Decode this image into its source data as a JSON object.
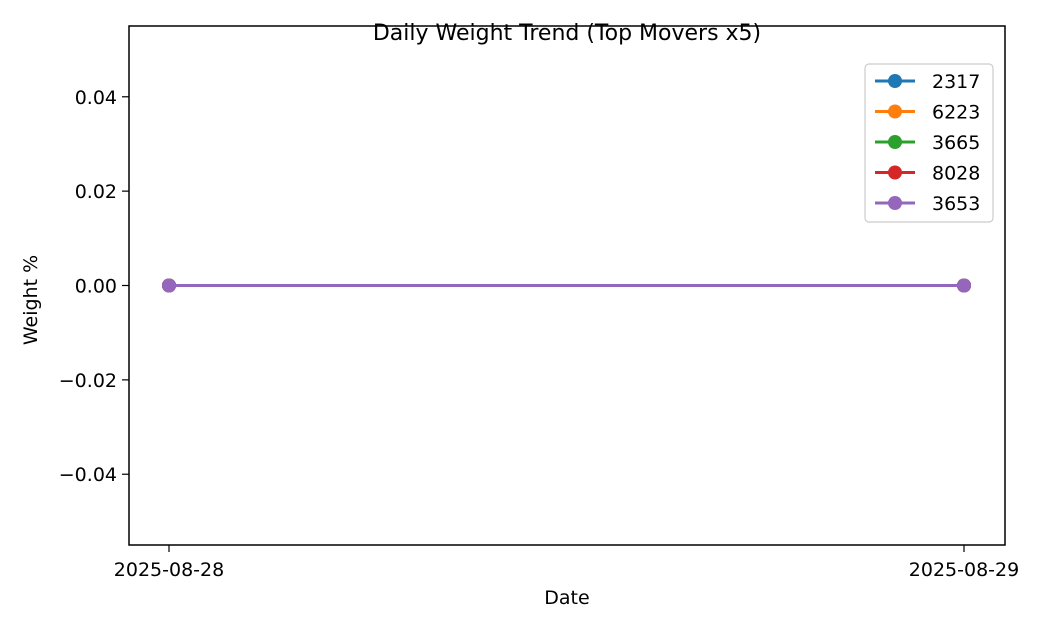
{
  "chart_data": {
    "type": "line",
    "title": "Daily Weight Trend (Top Movers x5)",
    "xlabel": "Date",
    "ylabel": "Weight %",
    "x": [
      "2025-08-28",
      "2025-08-29"
    ],
    "ylim": [
      -0.055,
      0.055
    ],
    "yticks": [
      0.04,
      0.02,
      0.0,
      -0.02,
      -0.04
    ],
    "ytick_labels": [
      "0.04",
      "0.02",
      "0.00",
      "−0.02",
      "−0.04"
    ],
    "grid": false,
    "legend_position": "top-right",
    "series": [
      {
        "name": "2317",
        "color": "#1f77b4",
        "values": [
          0.0,
          0.0
        ]
      },
      {
        "name": "6223",
        "color": "#ff7f0e",
        "values": [
          0.0,
          0.0
        ]
      },
      {
        "name": "3665",
        "color": "#2ca02c",
        "values": [
          0.0,
          0.0
        ]
      },
      {
        "name": "8028",
        "color": "#d62728",
        "values": [
          0.0,
          0.0
        ]
      },
      {
        "name": "3653",
        "color": "#9467bd",
        "values": [
          0.0,
          0.0
        ]
      }
    ]
  }
}
